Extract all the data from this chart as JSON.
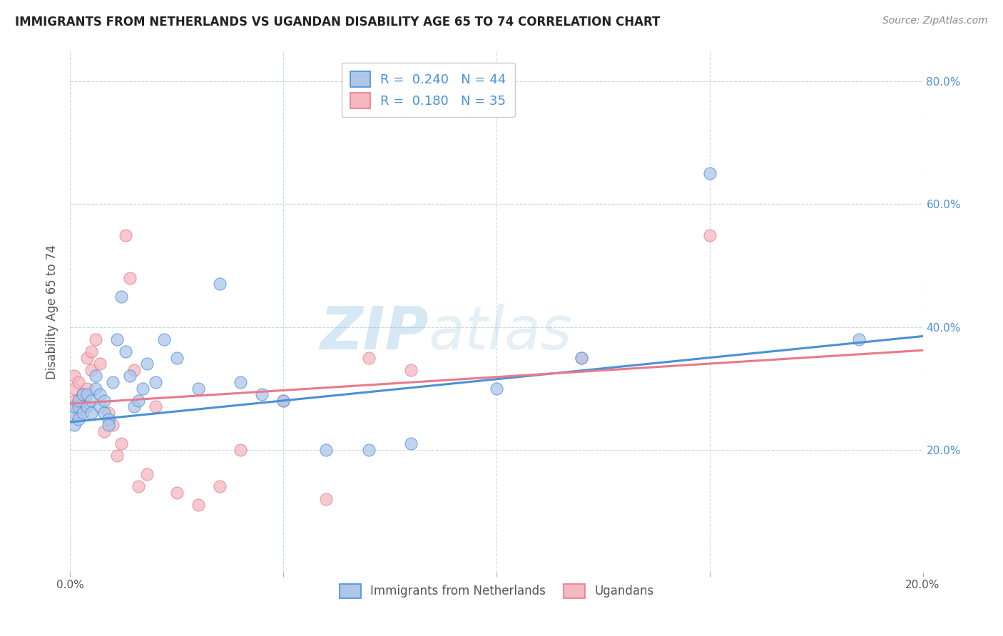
{
  "title": "IMMIGRANTS FROM NETHERLANDS VS UGANDAN DISABILITY AGE 65 TO 74 CORRELATION CHART",
  "source": "Source: ZipAtlas.com",
  "ylabel": "Disability Age 65 to 74",
  "legend_label1": "Immigrants from Netherlands",
  "legend_label2": "Ugandans",
  "R1": 0.24,
  "N1": 44,
  "R2": 0.18,
  "N2": 35,
  "xlim": [
    0.0,
    0.2
  ],
  "ylim": [
    0.0,
    0.85
  ],
  "xticks": [
    0.0,
    0.05,
    0.1,
    0.15,
    0.2
  ],
  "yticks": [
    0.0,
    0.2,
    0.4,
    0.6,
    0.8
  ],
  "xtick_labels": [
    "0.0%",
    "",
    "",
    "",
    "20.0%"
  ],
  "ytick_labels_right": [
    "",
    "20.0%",
    "40.0%",
    "60.0%",
    "80.0%"
  ],
  "color1": "#aec6e8",
  "color2": "#f4b8c1",
  "line_color1": "#4a90d9",
  "line_color2": "#e87a8a",
  "background_color": "#ffffff",
  "blue_scatter_x": [
    0.001,
    0.001,
    0.001,
    0.002,
    0.002,
    0.002,
    0.003,
    0.003,
    0.004,
    0.004,
    0.005,
    0.005,
    0.006,
    0.006,
    0.007,
    0.007,
    0.008,
    0.008,
    0.009,
    0.009,
    0.01,
    0.011,
    0.012,
    0.013,
    0.014,
    0.015,
    0.016,
    0.017,
    0.018,
    0.02,
    0.022,
    0.025,
    0.03,
    0.035,
    0.04,
    0.045,
    0.05,
    0.06,
    0.07,
    0.08,
    0.1,
    0.12,
    0.15,
    0.185
  ],
  "blue_scatter_y": [
    0.24,
    0.26,
    0.27,
    0.25,
    0.27,
    0.28,
    0.26,
    0.29,
    0.27,
    0.29,
    0.28,
    0.26,
    0.3,
    0.32,
    0.27,
    0.29,
    0.26,
    0.28,
    0.25,
    0.24,
    0.31,
    0.38,
    0.45,
    0.36,
    0.32,
    0.27,
    0.28,
    0.3,
    0.34,
    0.31,
    0.38,
    0.35,
    0.3,
    0.47,
    0.31,
    0.29,
    0.28,
    0.2,
    0.2,
    0.21,
    0.3,
    0.35,
    0.65,
    0.38
  ],
  "pink_scatter_x": [
    0.001,
    0.001,
    0.001,
    0.002,
    0.002,
    0.002,
    0.003,
    0.003,
    0.004,
    0.004,
    0.005,
    0.005,
    0.006,
    0.007,
    0.008,
    0.009,
    0.01,
    0.011,
    0.012,
    0.013,
    0.014,
    0.015,
    0.016,
    0.018,
    0.02,
    0.025,
    0.03,
    0.035,
    0.04,
    0.05,
    0.06,
    0.07,
    0.08,
    0.12,
    0.15
  ],
  "pink_scatter_y": [
    0.28,
    0.3,
    0.32,
    0.26,
    0.28,
    0.31,
    0.27,
    0.29,
    0.35,
    0.3,
    0.33,
    0.36,
    0.38,
    0.34,
    0.23,
    0.26,
    0.24,
    0.19,
    0.21,
    0.55,
    0.48,
    0.33,
    0.14,
    0.16,
    0.27,
    0.13,
    0.11,
    0.14,
    0.2,
    0.28,
    0.12,
    0.35,
    0.33,
    0.35,
    0.55
  ]
}
